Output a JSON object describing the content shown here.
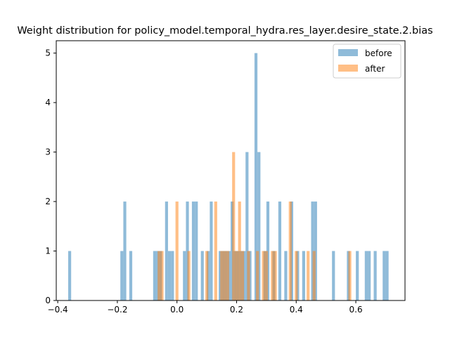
{
  "chart_data": {
    "type": "bar",
    "title": "Weight distribution for policy_model.temporal_hydra.res_layer.desire_state.2.bias",
    "xlabel": "",
    "ylabel": "",
    "xlim": [
      -0.405,
      0.765
    ],
    "ylim": [
      0,
      5.25
    ],
    "xticks": [
      -0.4,
      -0.2,
      0.0,
      0.2,
      0.4,
      0.6
    ],
    "xtick_labels": [
      "−0.4",
      "−0.2",
      "0.0",
      "0.2",
      "0.4",
      "0.6"
    ],
    "yticks": [
      0,
      1,
      2,
      3,
      4,
      5
    ],
    "ytick_labels": [
      "0",
      "1",
      "2",
      "3",
      "4",
      "5"
    ],
    "grid": false,
    "legend_position": "top-right",
    "bin_width": 0.0099,
    "series": [
      {
        "name": "before",
        "color": "#1f77b4",
        "opacity": 0.5,
        "bars": [
          {
            "x": -0.36,
            "count": 1
          },
          {
            "x": -0.185,
            "count": 1
          },
          {
            "x": -0.175,
            "count": 2
          },
          {
            "x": -0.155,
            "count": 1
          },
          {
            "x": -0.075,
            "count": 1
          },
          {
            "x": -0.065,
            "count": 1
          },
          {
            "x": -0.055,
            "count": 1
          },
          {
            "x": -0.035,
            "count": 2
          },
          {
            "x": -0.025,
            "count": 1
          },
          {
            "x": -0.015,
            "count": 1
          },
          {
            "x": 0.025,
            "count": 1
          },
          {
            "x": 0.035,
            "count": 2
          },
          {
            "x": 0.055,
            "count": 2
          },
          {
            "x": 0.065,
            "count": 2
          },
          {
            "x": 0.085,
            "count": 1
          },
          {
            "x": 0.105,
            "count": 1
          },
          {
            "x": 0.115,
            "count": 2
          },
          {
            "x": 0.145,
            "count": 1
          },
          {
            "x": 0.155,
            "count": 1
          },
          {
            "x": 0.165,
            "count": 1
          },
          {
            "x": 0.175,
            "count": 1
          },
          {
            "x": 0.185,
            "count": 2
          },
          {
            "x": 0.195,
            "count": 1
          },
          {
            "x": 0.205,
            "count": 1
          },
          {
            "x": 0.215,
            "count": 1
          },
          {
            "x": 0.225,
            "count": 1
          },
          {
            "x": 0.235,
            "count": 3
          },
          {
            "x": 0.245,
            "count": 1
          },
          {
            "x": 0.265,
            "count": 5
          },
          {
            "x": 0.275,
            "count": 3
          },
          {
            "x": 0.295,
            "count": 1
          },
          {
            "x": 0.305,
            "count": 2
          },
          {
            "x": 0.325,
            "count": 1
          },
          {
            "x": 0.345,
            "count": 2
          },
          {
            "x": 0.365,
            "count": 1
          },
          {
            "x": 0.385,
            "count": 2
          },
          {
            "x": 0.405,
            "count": 1
          },
          {
            "x": 0.425,
            "count": 1
          },
          {
            "x": 0.455,
            "count": 2
          },
          {
            "x": 0.465,
            "count": 2
          },
          {
            "x": 0.525,
            "count": 1
          },
          {
            "x": 0.575,
            "count": 1
          },
          {
            "x": 0.605,
            "count": 1
          },
          {
            "x": 0.635,
            "count": 1
          },
          {
            "x": 0.645,
            "count": 1
          },
          {
            "x": 0.665,
            "count": 1
          },
          {
            "x": 0.695,
            "count": 1
          },
          {
            "x": 0.705,
            "count": 1
          }
        ]
      },
      {
        "name": "after",
        "color": "#ff7f0e",
        "opacity": 0.5,
        "bars": [
          {
            "x": -0.06,
            "count": 1
          },
          {
            "x": -0.05,
            "count": 1
          },
          {
            "x": 0.0,
            "count": 2
          },
          {
            "x": 0.04,
            "count": 1
          },
          {
            "x": 0.1,
            "count": 1
          },
          {
            "x": 0.13,
            "count": 2
          },
          {
            "x": 0.15,
            "count": 1
          },
          {
            "x": 0.16,
            "count": 1
          },
          {
            "x": 0.17,
            "count": 1
          },
          {
            "x": 0.19,
            "count": 3
          },
          {
            "x": 0.2,
            "count": 1
          },
          {
            "x": 0.21,
            "count": 2
          },
          {
            "x": 0.22,
            "count": 1
          },
          {
            "x": 0.24,
            "count": 1
          },
          {
            "x": 0.27,
            "count": 1
          },
          {
            "x": 0.29,
            "count": 1
          },
          {
            "x": 0.3,
            "count": 1
          },
          {
            "x": 0.32,
            "count": 1
          },
          {
            "x": 0.33,
            "count": 1
          },
          {
            "x": 0.38,
            "count": 2
          },
          {
            "x": 0.4,
            "count": 1
          },
          {
            "x": 0.44,
            "count": 1
          },
          {
            "x": 0.46,
            "count": 1
          },
          {
            "x": 0.58,
            "count": 1
          }
        ]
      }
    ]
  }
}
